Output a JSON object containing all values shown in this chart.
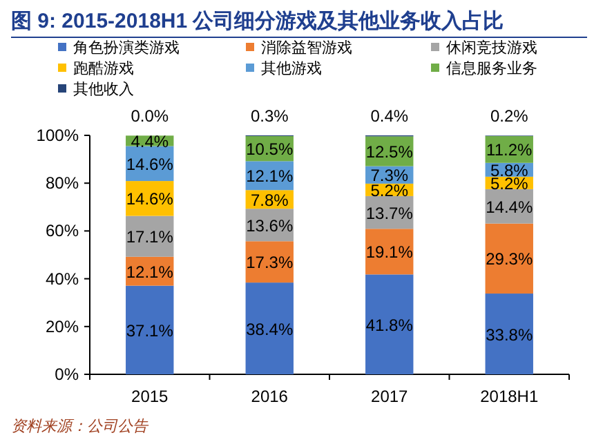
{
  "chart_data": {
    "type": "bar",
    "title": "图 9:   2015-2018H1 公司细分游戏及其他业务收入占比",
    "categories": [
      "2015",
      "2016",
      "2017",
      "2018H1"
    ],
    "stacked": true,
    "legend": "top",
    "ylim": [
      0,
      100
    ],
    "yticks": [
      {
        "value": 0,
        "label": "0%"
      },
      {
        "value": 20,
        "label": "20%"
      },
      {
        "value": 40,
        "label": "40%"
      },
      {
        "value": 60,
        "label": "60%"
      },
      {
        "value": 80,
        "label": "80%"
      },
      {
        "value": 100,
        "label": "100%"
      }
    ],
    "series": [
      {
        "name": "角色扮演类游戏",
        "color": "#4472c4",
        "values": [
          37.1,
          38.4,
          41.8,
          33.8
        ],
        "value_labels": [
          "37.1%",
          "38.4%",
          "41.8%",
          "33.8%"
        ]
      },
      {
        "name": "消除益智游戏",
        "color": "#ed7d31",
        "values": [
          12.1,
          17.3,
          19.1,
          29.3
        ],
        "value_labels": [
          "12.1%",
          "17.3%",
          "19.1%",
          "29.3%"
        ]
      },
      {
        "name": "休闲竞技游戏",
        "color": "#a5a5a5",
        "values": [
          17.1,
          13.6,
          13.7,
          14.4
        ],
        "value_labels": [
          "17.1%",
          "13.6%",
          "13.7%",
          "14.4%"
        ]
      },
      {
        "name": "跑酷游戏",
        "color": "#ffc000",
        "values": [
          14.6,
          7.8,
          5.2,
          5.2
        ],
        "value_labels": [
          "14.6%",
          "7.8%",
          "5.2%",
          "5.2%"
        ]
      },
      {
        "name": "其他游戏",
        "color": "#5b9bd5",
        "values": [
          14.6,
          12.1,
          7.3,
          5.8
        ],
        "value_labels": [
          "14.6%",
          "12.1%",
          "7.3%",
          "5.8%"
        ]
      },
      {
        "name": "信息服务业务",
        "color": "#70ad47",
        "values": [
          4.4,
          10.5,
          12.5,
          11.2
        ],
        "value_labels": [
          "4.4%",
          "10.5%",
          "12.5%",
          "11.2%"
        ]
      },
      {
        "name": "其他收入",
        "color": "#264478",
        "values": [
          0.0,
          0.3,
          0.4,
          0.2
        ],
        "value_labels": [
          "0.0%",
          "0.3%",
          "0.4%",
          "0.2%"
        ]
      }
    ],
    "annotations": [
      "资料来源：公司公告"
    ]
  }
}
